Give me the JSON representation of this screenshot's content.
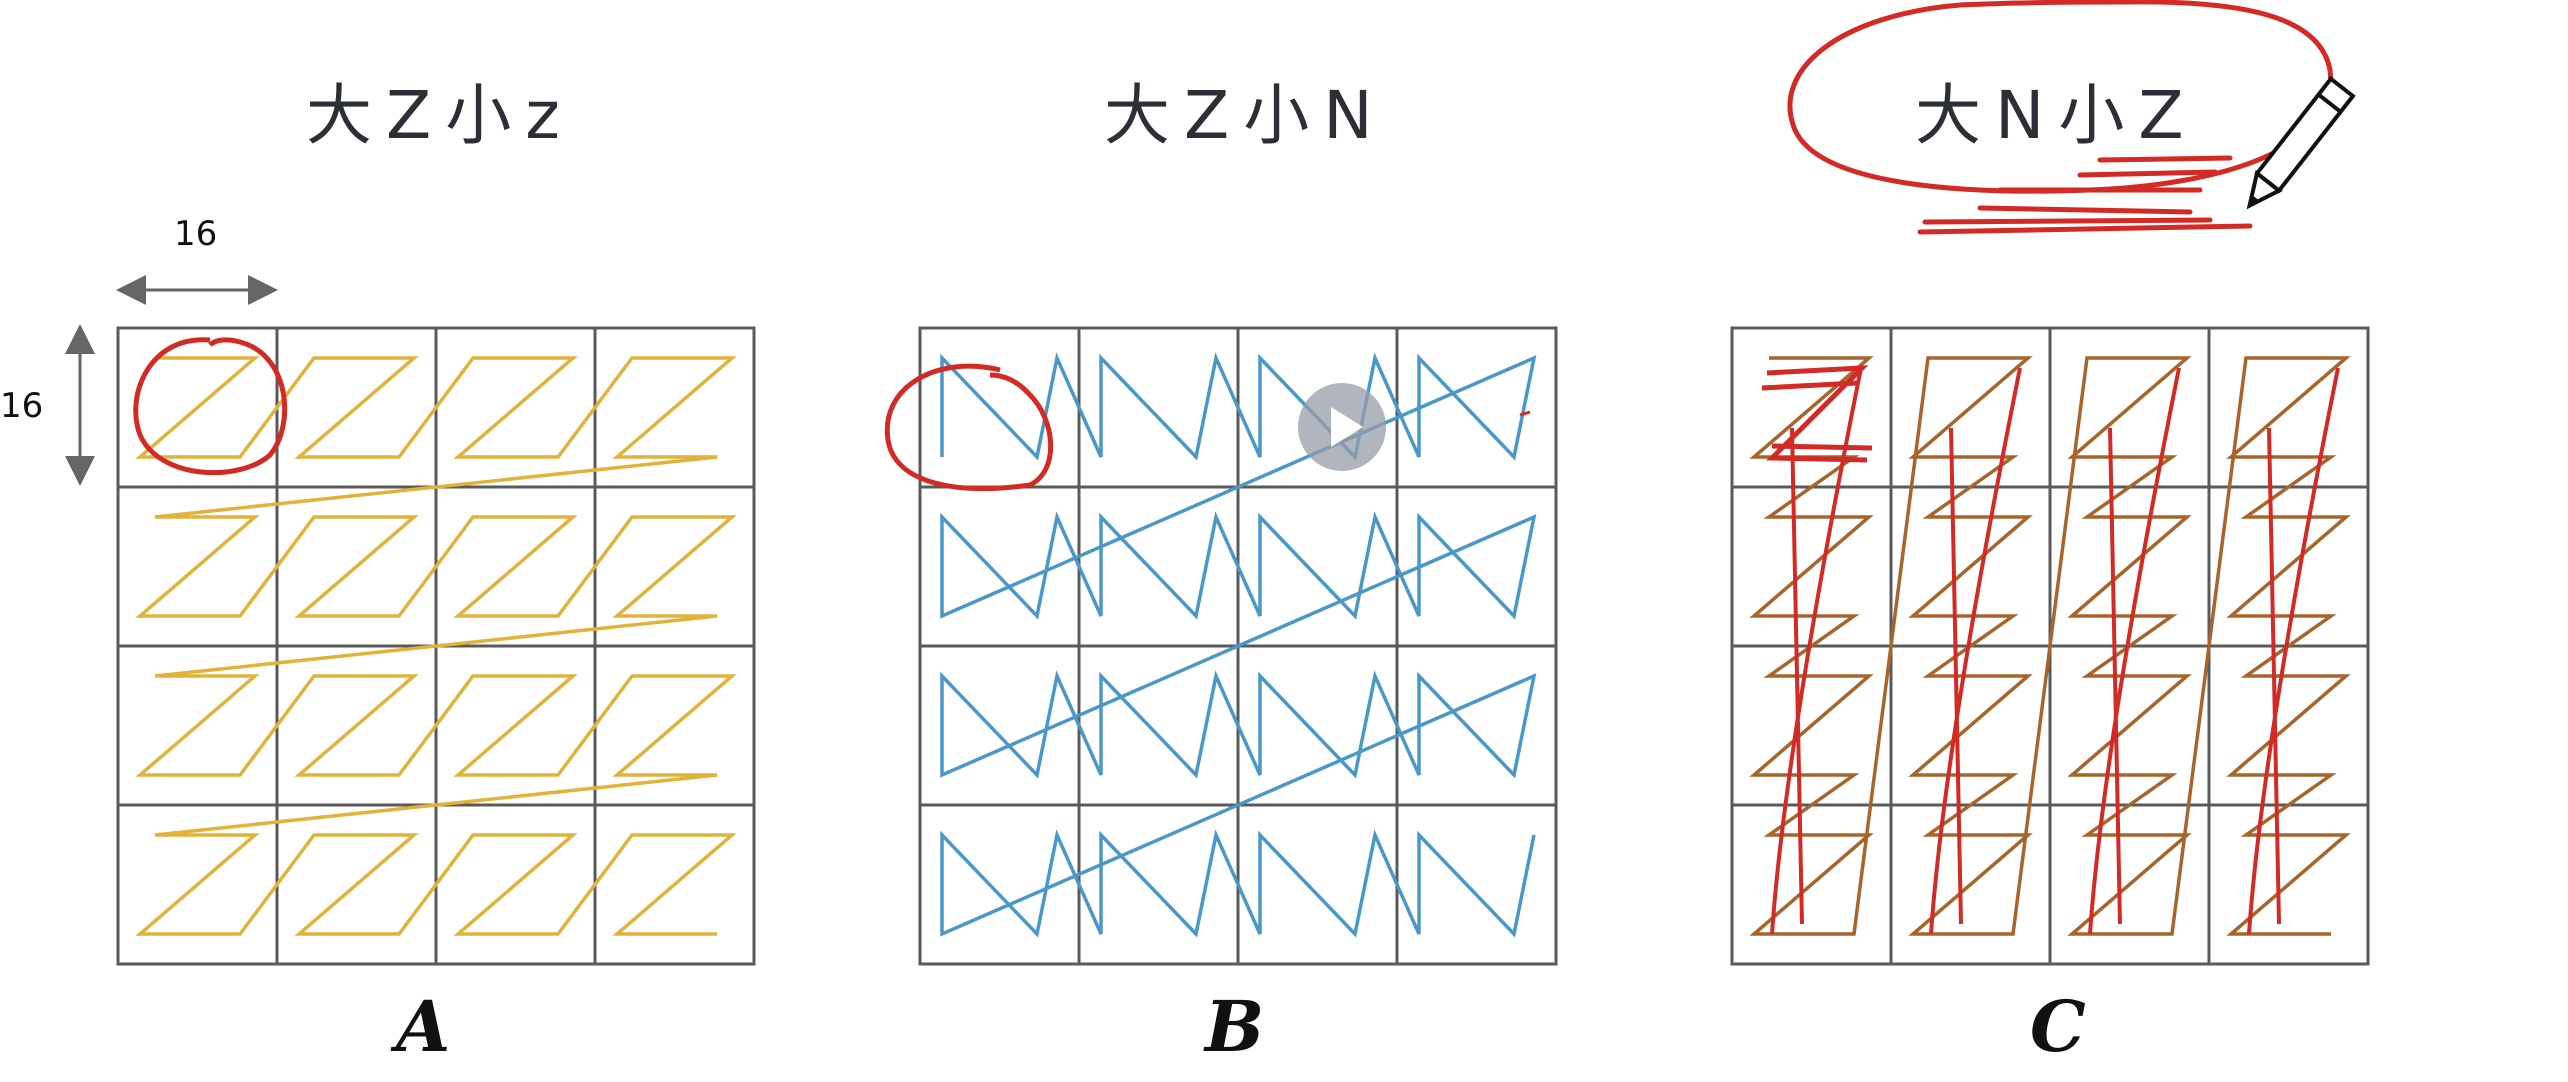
{
  "panels": [
    {
      "id": "A",
      "title": "大Z小z",
      "label": "A",
      "inner_pattern": "Z",
      "outer_order": "row-major",
      "line_color": "#e2b33a"
    },
    {
      "id": "B",
      "title": "大Z小N",
      "label": "B",
      "inner_pattern": "N",
      "outer_order": "row-major",
      "line_color": "#4a98c9"
    },
    {
      "id": "C",
      "title": "大N小Z",
      "label": "C",
      "inner_pattern": "Z",
      "outer_order": "column-major",
      "line_color": "#a8642a"
    }
  ],
  "dimension": {
    "width_label": "16",
    "height_label": "16"
  },
  "grid": {
    "rows": 4,
    "cols": 4,
    "color": "#5a5a5a"
  },
  "annotation_color": "#d42a25",
  "overlay": {
    "play_icon": "play-icon",
    "pencil_icon": "pencil-icon"
  }
}
